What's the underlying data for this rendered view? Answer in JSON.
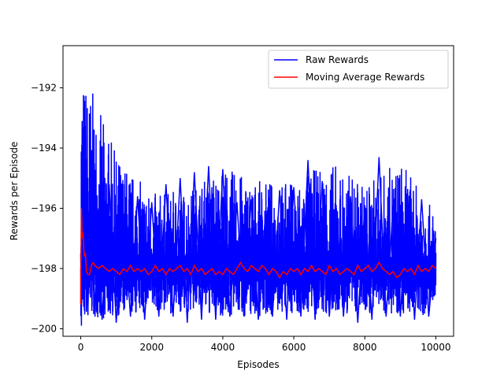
{
  "chart_data": {
    "type": "line",
    "title": "",
    "xlabel": "Episodes",
    "ylabel": "Rewards per Episode",
    "xlim": [
      -500,
      10500
    ],
    "ylim": [
      -200.25,
      -190.6
    ],
    "xticks": [
      0,
      2000,
      4000,
      6000,
      8000,
      10000
    ],
    "xtick_labels": [
      "0",
      "2000",
      "4000",
      "6000",
      "8000",
      "10000"
    ],
    "yticks": [
      -200,
      -198,
      -196,
      -194,
      -192
    ],
    "ytick_labels": [
      "−200",
      "−198",
      "−196",
      "−194",
      "−192"
    ],
    "grid": false,
    "legend": {
      "position": "top-right"
    },
    "series": [
      {
        "name": "Raw Rewards",
        "color": "#0000ff",
        "noisy": true,
        "band_low": [
          -199.8,
          -199.6,
          -199.5,
          -199.5,
          -199.6,
          -199.6,
          -199.5,
          -199.6,
          -199.5,
          -199.5,
          -199.6
        ],
        "band_high": [
          -191.1,
          -194.2,
          -195.5,
          -195.4,
          -194.6,
          -195.1,
          -195.1,
          -194.4,
          -195.2,
          -194.4,
          -196.2
        ],
        "x": [
          0,
          20,
          40,
          60,
          80,
          100,
          150,
          200,
          300,
          400,
          500,
          600,
          800,
          1000,
          1200,
          1400,
          1600,
          1800,
          2000,
          2200,
          2400,
          2600,
          2800,
          3000,
          3200,
          3400,
          3600,
          3800,
          4000,
          4200,
          4400,
          4600,
          4800,
          5000,
          5200,
          5400,
          5600,
          5800,
          6000,
          6200,
          6400,
          6600,
          6800,
          7000,
          7200,
          7400,
          7600,
          7800,
          8000,
          8200,
          8400,
          8600,
          8800,
          9000,
          9200,
          9400,
          9600,
          9800,
          10000
        ],
        "y": [
          -197.5,
          -199.9,
          -193.1,
          -199.0,
          -196.5,
          -199.4,
          -197.0,
          -199.5,
          -194.2,
          -199.6,
          -196.0,
          -199.7,
          -195.2,
          -199.8,
          -196.1,
          -199.6,
          -195.6,
          -199.7,
          -195.8,
          -199.6,
          -195.2,
          -199.6,
          -195.0,
          -199.8,
          -194.8,
          -199.7,
          -194.6,
          -199.7,
          -194.7,
          -199.6,
          -195.8,
          -199.6,
          -195.7,
          -199.7,
          -196.2,
          -199.6,
          -195.4,
          -199.7,
          -195.3,
          -199.6,
          -194.4,
          -199.7,
          -195.1,
          -199.6,
          -196.0,
          -199.6,
          -195.6,
          -199.8,
          -195.9,
          -199.7,
          -194.3,
          -199.6,
          -195.9,
          -199.6,
          -195.5,
          -199.7,
          -195.7,
          -199.6,
          -197.0
        ]
      },
      {
        "name": "Moving Average Rewards",
        "color": "#ff0000",
        "x": [
          0,
          20,
          40,
          60,
          80,
          100,
          130,
          160,
          200,
          250,
          300,
          350,
          400,
          500,
          600,
          700,
          800,
          900,
          1000,
          1100,
          1200,
          1300,
          1400,
          1500,
          1600,
          1700,
          1800,
          1900,
          2000,
          2100,
          2200,
          2300,
          2400,
          2500,
          2600,
          2700,
          2800,
          2900,
          3000,
          3100,
          3200,
          3300,
          3400,
          3500,
          3600,
          3700,
          3800,
          3900,
          4000,
          4100,
          4200,
          4300,
          4400,
          4500,
          4600,
          4700,
          4800,
          4900,
          5000,
          5100,
          5200,
          5300,
          5400,
          5500,
          5600,
          5700,
          5800,
          5900,
          6000,
          6100,
          6200,
          6300,
          6400,
          6500,
          6600,
          6700,
          6800,
          6900,
          7000,
          7100,
          7200,
          7300,
          7400,
          7500,
          7600,
          7700,
          7800,
          7900,
          8000,
          8100,
          8200,
          8300,
          8400,
          8500,
          8600,
          8700,
          8800,
          8900,
          9000,
          9100,
          9200,
          9300,
          9400,
          9500,
          9600,
          9700,
          9800,
          9900,
          10000
        ],
        "y": [
          -199.2,
          -196.0,
          -197.0,
          -196.8,
          -197.3,
          -197.6,
          -197.5,
          -198.1,
          -198.2,
          -198.2,
          -197.9,
          -197.8,
          -197.9,
          -198.0,
          -197.9,
          -198.0,
          -198.1,
          -198.0,
          -198.1,
          -198.2,
          -198.0,
          -198.1,
          -197.9,
          -198.1,
          -198.0,
          -198.1,
          -198.0,
          -198.2,
          -198.1,
          -197.9,
          -198.1,
          -198.0,
          -198.2,
          -198.0,
          -198.1,
          -198.0,
          -197.9,
          -198.1,
          -198.0,
          -198.2,
          -197.9,
          -198.1,
          -198.0,
          -198.2,
          -198.1,
          -198.0,
          -198.2,
          -198.1,
          -198.2,
          -198.0,
          -198.1,
          -198.2,
          -198.0,
          -197.8,
          -198.0,
          -198.1,
          -197.9,
          -198.0,
          -198.1,
          -197.9,
          -198.0,
          -198.2,
          -198.0,
          -198.1,
          -198.3,
          -198.1,
          -198.2,
          -198.0,
          -198.1,
          -198.0,
          -198.2,
          -198.0,
          -198.1,
          -197.9,
          -198.1,
          -198.0,
          -198.1,
          -198.2,
          -197.9,
          -198.1,
          -198.0,
          -198.2,
          -198.1,
          -198.0,
          -198.1,
          -198.2,
          -197.9,
          -198.1,
          -198.0,
          -197.9,
          -198.1,
          -198.0,
          -197.8,
          -198.0,
          -198.1,
          -198.2,
          -198.1,
          -198.3,
          -198.2,
          -198.0,
          -198.1,
          -198.0,
          -198.2,
          -197.9,
          -198.1,
          -198.0,
          -198.1,
          -197.9,
          -198.0
        ]
      }
    ]
  }
}
